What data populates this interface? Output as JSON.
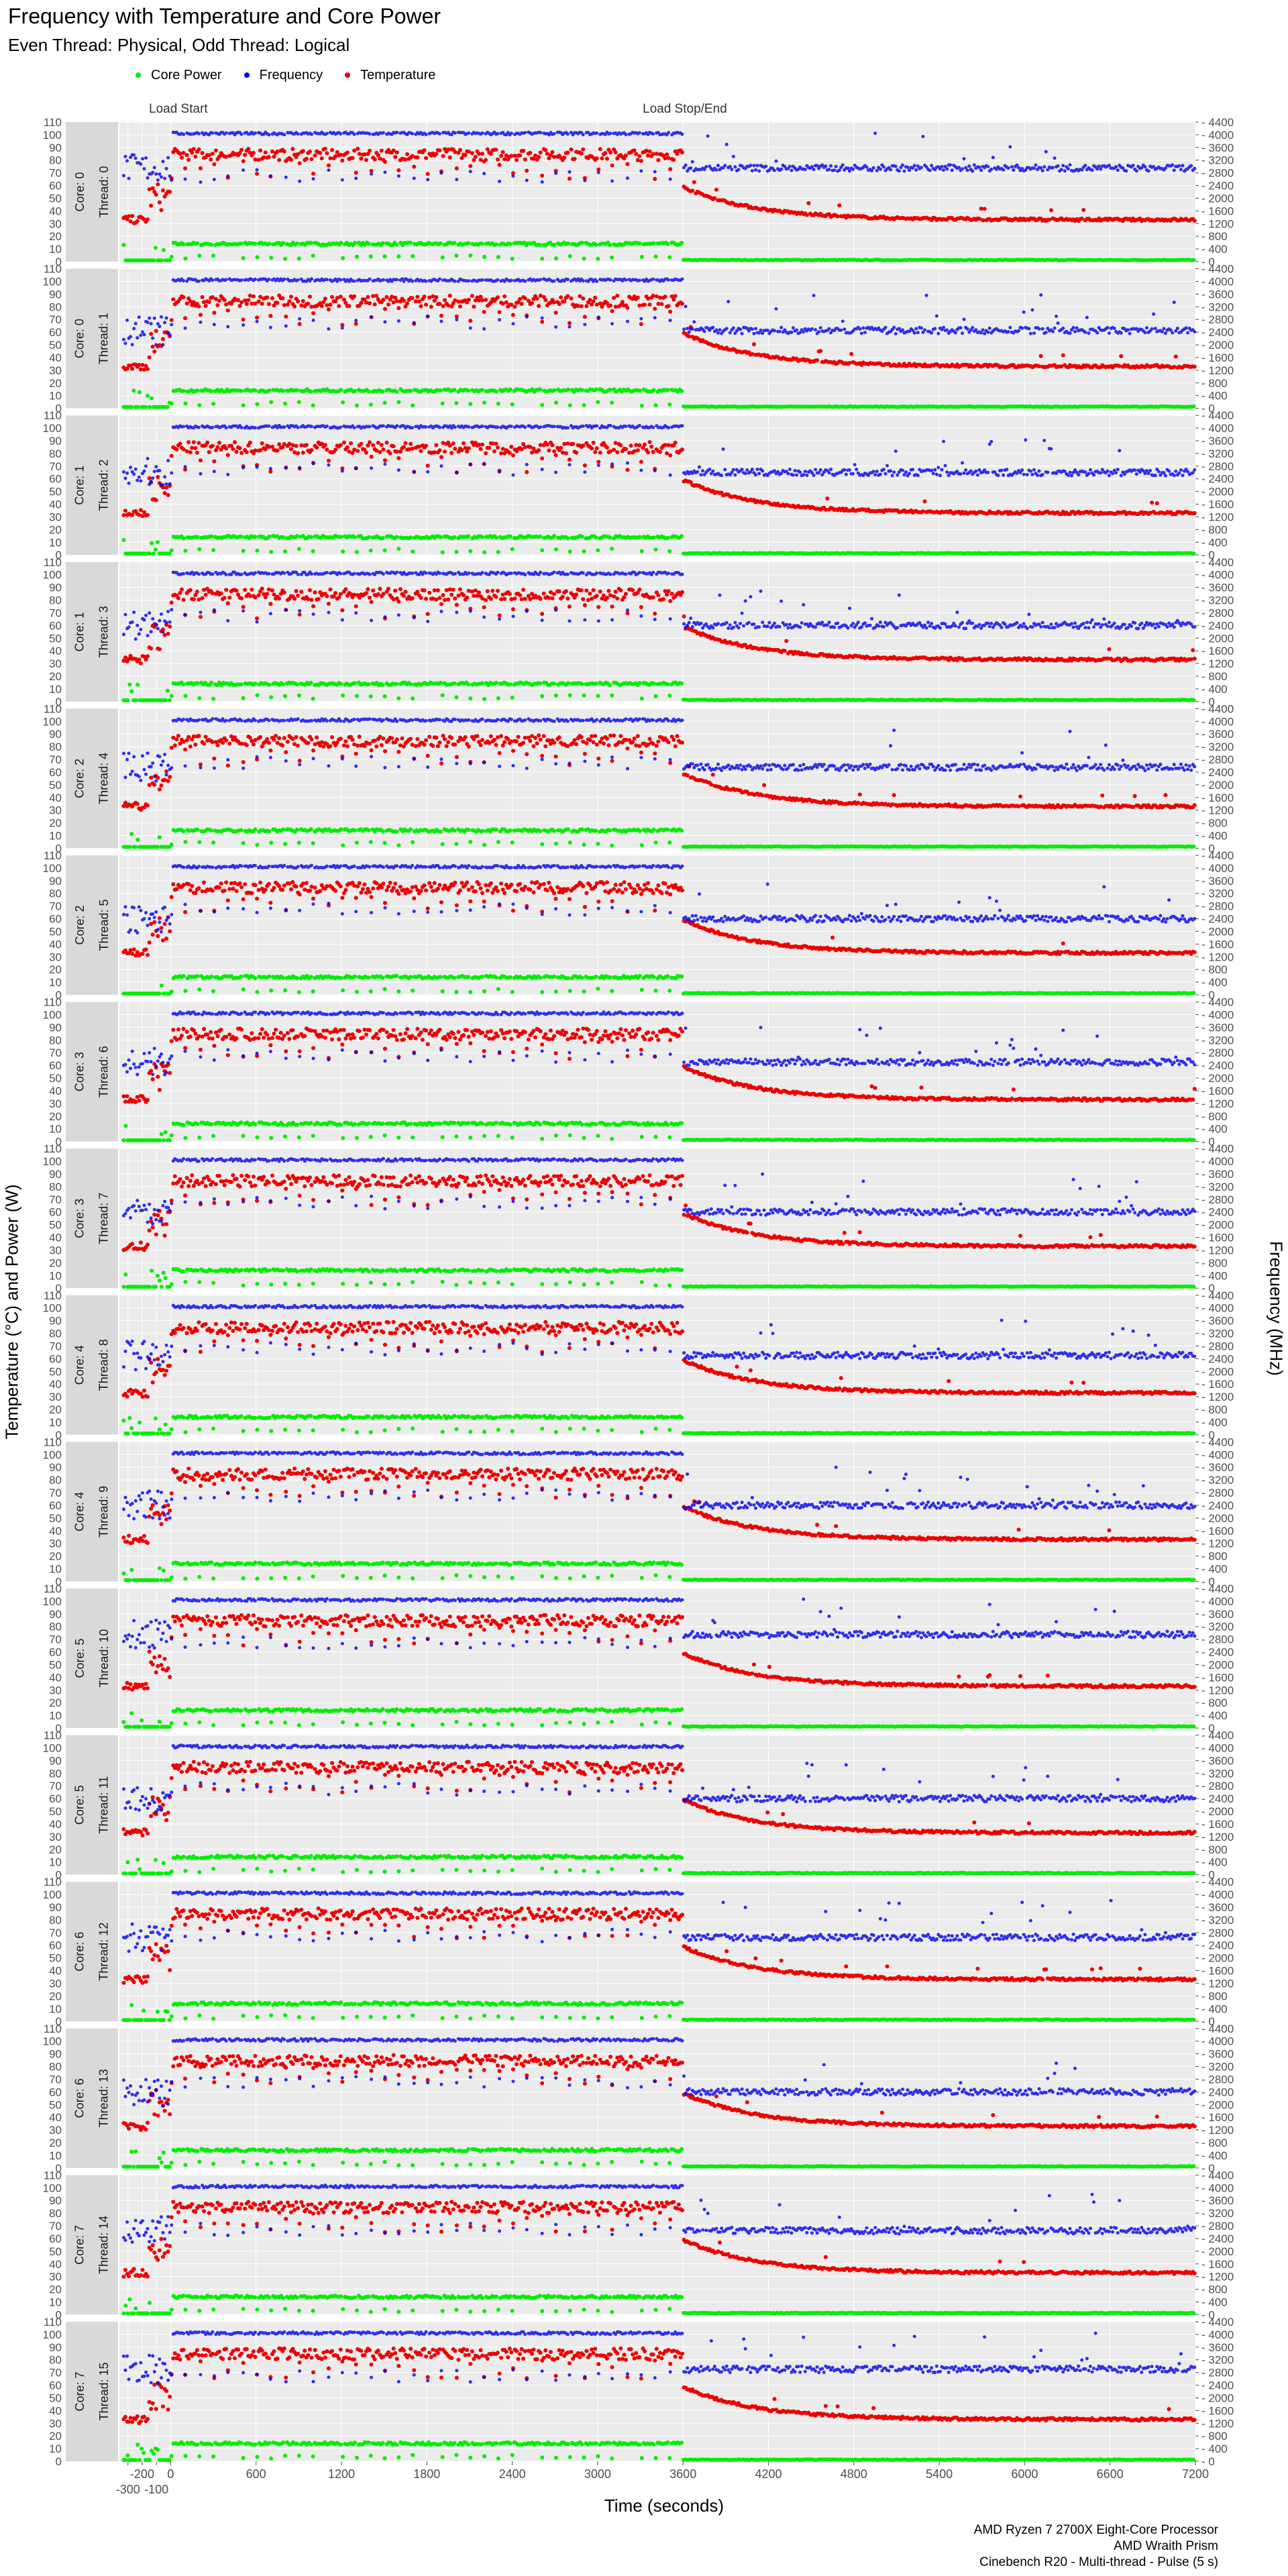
{
  "title": "Frequency with Temperature and Core Power",
  "subtitle": "Even Thread: Physical, Odd Thread: Logical",
  "legend": {
    "power": "Core Power",
    "frequency": "Frequency",
    "temperature": "Temperature"
  },
  "annotations": {
    "start": "Load Start",
    "end": "Load Stop/End"
  },
  "caption": {
    "line1": "AMD Ryzen 7 2700X Eight-Core Processor",
    "line2": "AMD Wraith Prism",
    "line3": "Cinebench R20 - Multi-thread - Pulse (5 s)"
  },
  "colors": {
    "power": "#00ee00",
    "frequency": "#0000ee",
    "temperature": "#ee0000",
    "panel_bg": "#ebebeb",
    "strip_bg": "#d9d9d9"
  },
  "chart_data": {
    "type": "scatter",
    "title": "Frequency with Temperature and Core Power",
    "subtitle": "Even Thread: Physical, Odd Thread: Logical",
    "xlabel": "Time (seconds)",
    "ylabel": "Temperature (°C) and Power (W)",
    "ylabel_right": "Frequency (MHz)",
    "xlim": [
      -360,
      7200
    ],
    "ylim": [
      0,
      110
    ],
    "ylim_right": [
      0,
      4400
    ],
    "x_ticks": [
      -300,
      -200,
      -100,
      0,
      600,
      1200,
      1800,
      2400,
      3000,
      3600,
      4200,
      4800,
      5400,
      6000,
      6600,
      7200
    ],
    "y_ticks": [
      0,
      10,
      20,
      30,
      40,
      50,
      60,
      70,
      80,
      90,
      100,
      110
    ],
    "y_ticks_right": [
      0,
      400,
      800,
      1200,
      1600,
      2000,
      2400,
      2800,
      3200,
      3600,
      4000,
      4400
    ],
    "load_start": 0,
    "load_end": 3600,
    "grid": true,
    "legend_position": "top-left",
    "series": [
      {
        "name": "Core Power",
        "axis": "left",
        "idle": 1,
        "load": 13
      },
      {
        "name": "Frequency",
        "axis": "right",
        "load": 4000,
        "idle_by_panel": [
          2950,
          2450,
          2600,
          2400,
          2550,
          2400,
          2500,
          2400,
          2500,
          2400,
          2950,
          2400,
          2650,
          2400,
          2650,
          2900
        ]
      },
      {
        "name": "Temperature",
        "axis": "left",
        "pre": 30,
        "load": 85,
        "idle_end": 32
      }
    ],
    "panels": [
      {
        "core": "Core: 0",
        "thread": "Thread: 0"
      },
      {
        "core": "Core: 0",
        "thread": "Thread: 1"
      },
      {
        "core": "Core: 1",
        "thread": "Thread: 2"
      },
      {
        "core": "Core: 1",
        "thread": "Thread: 3"
      },
      {
        "core": "Core: 2",
        "thread": "Thread: 4"
      },
      {
        "core": "Core: 2",
        "thread": "Thread: 5"
      },
      {
        "core": "Core: 3",
        "thread": "Thread: 6"
      },
      {
        "core": "Core: 3",
        "thread": "Thread: 7"
      },
      {
        "core": "Core: 4",
        "thread": "Thread: 8"
      },
      {
        "core": "Core: 4",
        "thread": "Thread: 9"
      },
      {
        "core": "Core: 5",
        "thread": "Thread: 10"
      },
      {
        "core": "Core: 5",
        "thread": "Thread: 11"
      },
      {
        "core": "Core: 6",
        "thread": "Thread: 12"
      },
      {
        "core": "Core: 6",
        "thread": "Thread: 13"
      },
      {
        "core": "Core: 7",
        "thread": "Thread: 14"
      },
      {
        "core": "Core: 7",
        "thread": "Thread: 15"
      }
    ]
  }
}
